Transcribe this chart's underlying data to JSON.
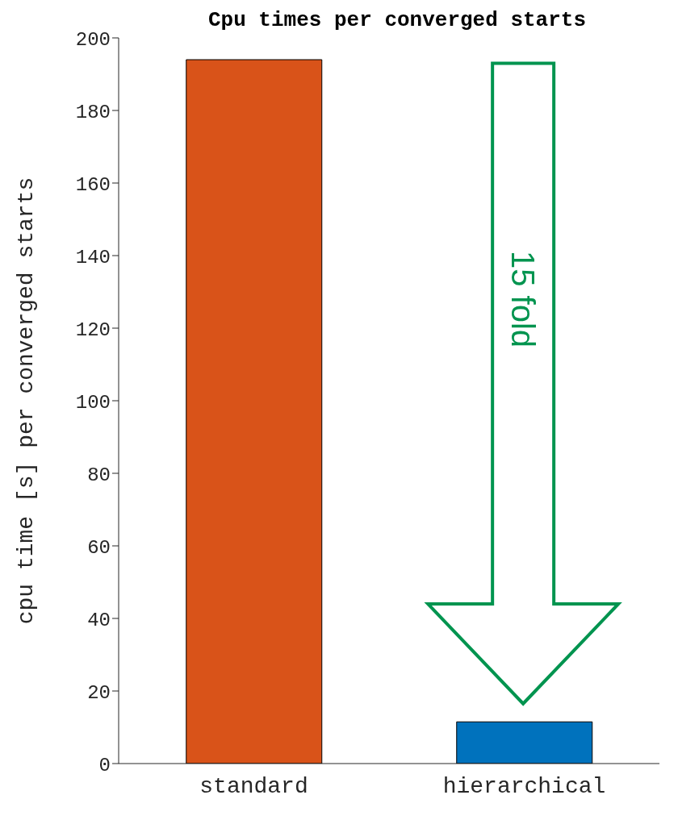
{
  "chart_data": {
    "type": "bar",
    "title": "Cpu times per converged starts",
    "ylabel": "cpu time [s] per converged starts",
    "categories": [
      "standard",
      "hierarchical"
    ],
    "values": [
      194,
      11.5
    ],
    "colors": [
      "#d95319",
      "#0072bd"
    ],
    "ylim": [
      0,
      200
    ],
    "yticks": [
      0,
      20,
      40,
      60,
      80,
      100,
      120,
      140,
      160,
      180,
      200
    ],
    "grid": false,
    "legend": false,
    "annotations": [
      "15 fold"
    ]
  }
}
